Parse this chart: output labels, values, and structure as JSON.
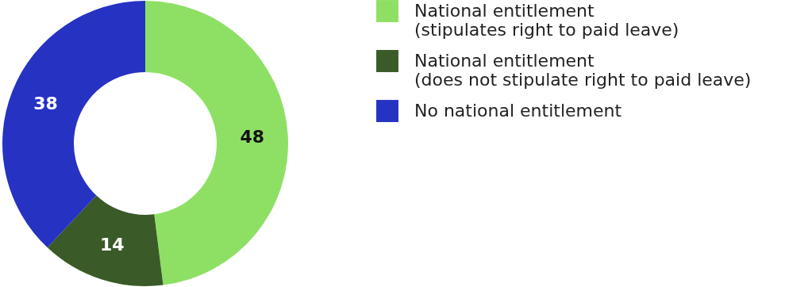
{
  "chart_data": {
    "type": "donut",
    "categories": [
      "National entitlement (stipulates right to paid leave)",
      "National entitlement (does not stipulate right to paid leave)",
      "No national entitlement"
    ],
    "values": [
      48,
      14,
      38
    ],
    "colors": [
      "#8ee065",
      "#3a5a28",
      "#2632c2"
    ],
    "data_labels": true,
    "legend": "right"
  }
}
